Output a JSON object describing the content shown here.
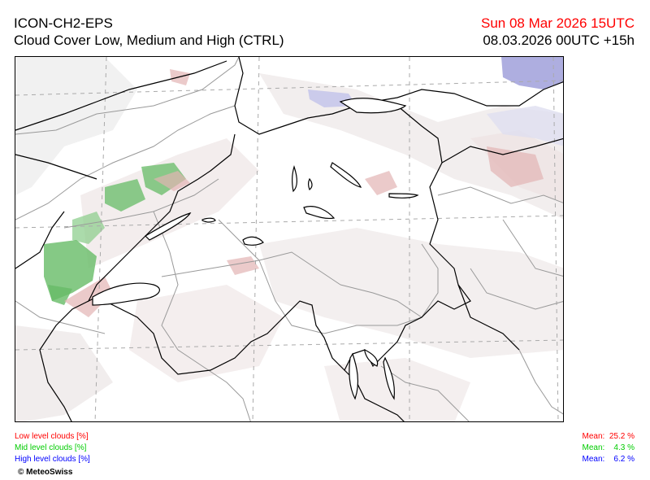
{
  "header": {
    "model": "ICON-CH2-EPS",
    "product": "Cloud Cover Low, Medium and High (CTRL)",
    "valid_time": "Sun 08 Mar 2026 15UTC",
    "run_time": "08.03.2026 00UTC +15h"
  },
  "map": {
    "copyright": "© MeteoSwiss"
  },
  "legend": {
    "low": {
      "label": "Low level clouds [%]",
      "mean_label": "Mean:",
      "mean_value": "25.2 %",
      "color": "#ff0000"
    },
    "mid": {
      "label": "Mid level clouds [%]",
      "mean_label": "Mean:",
      "mean_value": "4.3 %",
      "color": "#00cc00"
    },
    "high": {
      "label": "High level clouds [%]",
      "mean_label": "Mean:",
      "mean_value": "6.2 %",
      "color": "#0000ff"
    }
  },
  "colors": {
    "low_cloud": "#e8c8c8",
    "mid_cloud": "#66bb66",
    "high_cloud": "#9a9ad8",
    "coverage_gray": "#ececec"
  }
}
